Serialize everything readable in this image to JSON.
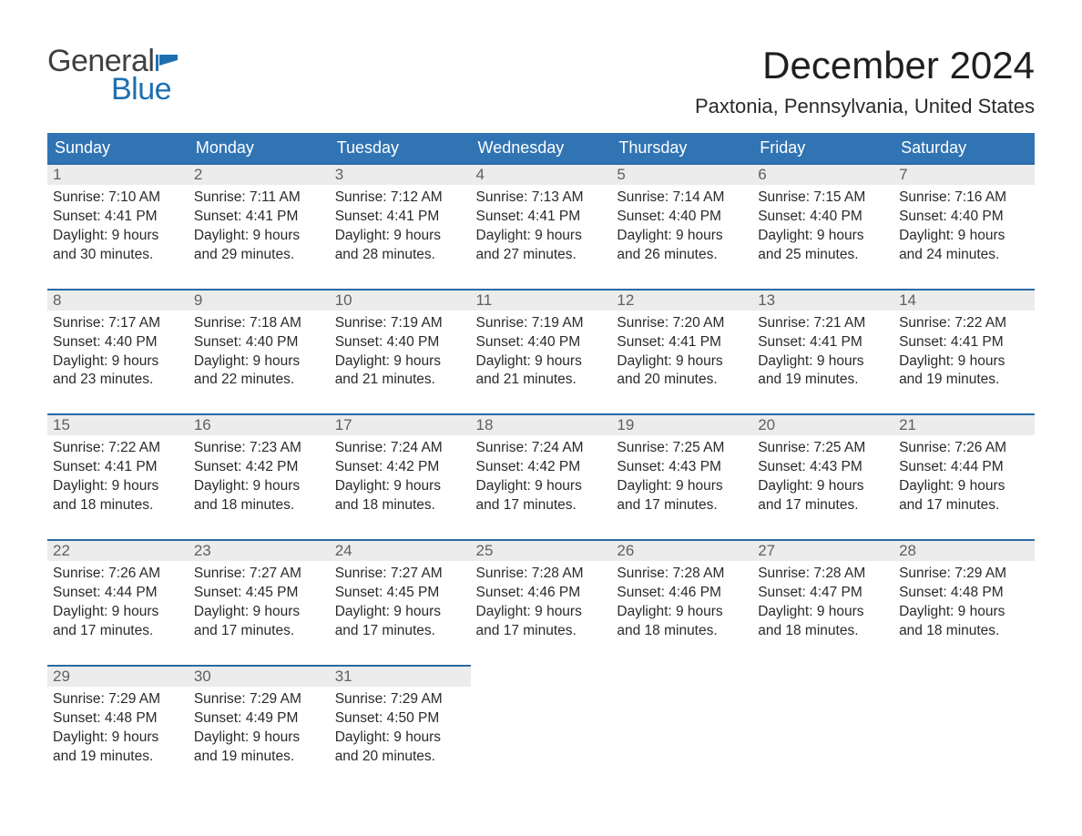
{
  "colors": {
    "header_blue": "#3174b3",
    "top_border_blue": "#2a6aa5",
    "daynum_bg": "#ececec",
    "text": "#2a2a2a",
    "logo_blue": "#1e6fb0",
    "background": "#ffffff"
  },
  "logo": {
    "line1": "General",
    "line2": "Blue"
  },
  "title": "December 2024",
  "location": "Paxtonia, Pennsylvania, United States",
  "weekdays": [
    "Sunday",
    "Monday",
    "Tuesday",
    "Wednesday",
    "Thursday",
    "Friday",
    "Saturday"
  ],
  "fields": {
    "sunrise_label": "Sunrise:",
    "sunset_label": "Sunset:",
    "daylight_label_prefix": "Daylight:",
    "daylight_hours_word": "hours",
    "daylight_minutes_word": "minutes."
  },
  "weeks": [
    [
      {
        "day": "1",
        "sunrise": "7:10 AM",
        "sunset": "4:41 PM",
        "daylight_h": 9,
        "daylight_m": 30
      },
      {
        "day": "2",
        "sunrise": "7:11 AM",
        "sunset": "4:41 PM",
        "daylight_h": 9,
        "daylight_m": 29
      },
      {
        "day": "3",
        "sunrise": "7:12 AM",
        "sunset": "4:41 PM",
        "daylight_h": 9,
        "daylight_m": 28
      },
      {
        "day": "4",
        "sunrise": "7:13 AM",
        "sunset": "4:41 PM",
        "daylight_h": 9,
        "daylight_m": 27
      },
      {
        "day": "5",
        "sunrise": "7:14 AM",
        "sunset": "4:40 PM",
        "daylight_h": 9,
        "daylight_m": 26
      },
      {
        "day": "6",
        "sunrise": "7:15 AM",
        "sunset": "4:40 PM",
        "daylight_h": 9,
        "daylight_m": 25
      },
      {
        "day": "7",
        "sunrise": "7:16 AM",
        "sunset": "4:40 PM",
        "daylight_h": 9,
        "daylight_m": 24
      }
    ],
    [
      {
        "day": "8",
        "sunrise": "7:17 AM",
        "sunset": "4:40 PM",
        "daylight_h": 9,
        "daylight_m": 23
      },
      {
        "day": "9",
        "sunrise": "7:18 AM",
        "sunset": "4:40 PM",
        "daylight_h": 9,
        "daylight_m": 22
      },
      {
        "day": "10",
        "sunrise": "7:19 AM",
        "sunset": "4:40 PM",
        "daylight_h": 9,
        "daylight_m": 21
      },
      {
        "day": "11",
        "sunrise": "7:19 AM",
        "sunset": "4:40 PM",
        "daylight_h": 9,
        "daylight_m": 21
      },
      {
        "day": "12",
        "sunrise": "7:20 AM",
        "sunset": "4:41 PM",
        "daylight_h": 9,
        "daylight_m": 20
      },
      {
        "day": "13",
        "sunrise": "7:21 AM",
        "sunset": "4:41 PM",
        "daylight_h": 9,
        "daylight_m": 19
      },
      {
        "day": "14",
        "sunrise": "7:22 AM",
        "sunset": "4:41 PM",
        "daylight_h": 9,
        "daylight_m": 19
      }
    ],
    [
      {
        "day": "15",
        "sunrise": "7:22 AM",
        "sunset": "4:41 PM",
        "daylight_h": 9,
        "daylight_m": 18
      },
      {
        "day": "16",
        "sunrise": "7:23 AM",
        "sunset": "4:42 PM",
        "daylight_h": 9,
        "daylight_m": 18
      },
      {
        "day": "17",
        "sunrise": "7:24 AM",
        "sunset": "4:42 PM",
        "daylight_h": 9,
        "daylight_m": 18
      },
      {
        "day": "18",
        "sunrise": "7:24 AM",
        "sunset": "4:42 PM",
        "daylight_h": 9,
        "daylight_m": 17
      },
      {
        "day": "19",
        "sunrise": "7:25 AM",
        "sunset": "4:43 PM",
        "daylight_h": 9,
        "daylight_m": 17
      },
      {
        "day": "20",
        "sunrise": "7:25 AM",
        "sunset": "4:43 PM",
        "daylight_h": 9,
        "daylight_m": 17
      },
      {
        "day": "21",
        "sunrise": "7:26 AM",
        "sunset": "4:44 PM",
        "daylight_h": 9,
        "daylight_m": 17
      }
    ],
    [
      {
        "day": "22",
        "sunrise": "7:26 AM",
        "sunset": "4:44 PM",
        "daylight_h": 9,
        "daylight_m": 17
      },
      {
        "day": "23",
        "sunrise": "7:27 AM",
        "sunset": "4:45 PM",
        "daylight_h": 9,
        "daylight_m": 17
      },
      {
        "day": "24",
        "sunrise": "7:27 AM",
        "sunset": "4:45 PM",
        "daylight_h": 9,
        "daylight_m": 17
      },
      {
        "day": "25",
        "sunrise": "7:28 AM",
        "sunset": "4:46 PM",
        "daylight_h": 9,
        "daylight_m": 17
      },
      {
        "day": "26",
        "sunrise": "7:28 AM",
        "sunset": "4:46 PM",
        "daylight_h": 9,
        "daylight_m": 18
      },
      {
        "day": "27",
        "sunrise": "7:28 AM",
        "sunset": "4:47 PM",
        "daylight_h": 9,
        "daylight_m": 18
      },
      {
        "day": "28",
        "sunrise": "7:29 AM",
        "sunset": "4:48 PM",
        "daylight_h": 9,
        "daylight_m": 18
      }
    ],
    [
      {
        "day": "29",
        "sunrise": "7:29 AM",
        "sunset": "4:48 PM",
        "daylight_h": 9,
        "daylight_m": 19
      },
      {
        "day": "30",
        "sunrise": "7:29 AM",
        "sunset": "4:49 PM",
        "daylight_h": 9,
        "daylight_m": 19
      },
      {
        "day": "31",
        "sunrise": "7:29 AM",
        "sunset": "4:50 PM",
        "daylight_h": 9,
        "daylight_m": 20
      },
      null,
      null,
      null,
      null
    ]
  ]
}
